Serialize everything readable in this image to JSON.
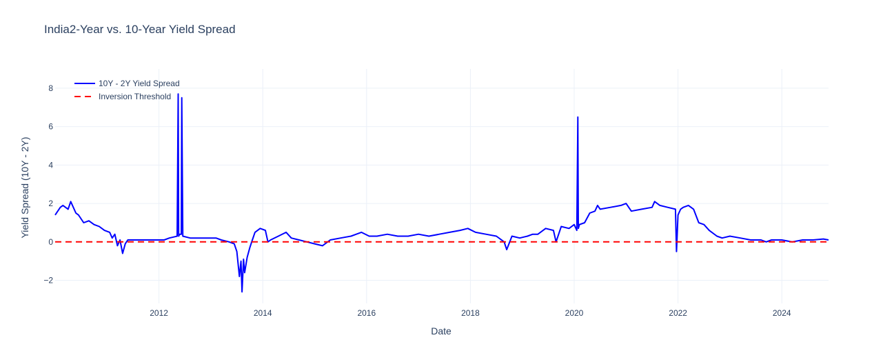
{
  "chart_data": {
    "type": "line",
    "title": "India2-Year vs. 10-Year Yield Spread",
    "xlabel": "Date",
    "ylabel": "Yield Spread (10Y - 2Y)",
    "xlim": [
      2010.0,
      2024.9
    ],
    "ylim": [
      -3.2,
      9.0
    ],
    "x_tick_labels": [
      "2012",
      "2014",
      "2016",
      "2018",
      "2020",
      "2022",
      "2024"
    ],
    "y_tick_labels": [
      "−2",
      "0",
      "2",
      "4",
      "6",
      "8"
    ],
    "grid": true,
    "legend_position": "top-left",
    "series": [
      {
        "name": "10Y - 2Y Yield Spread",
        "color": "#0000ff",
        "x": [
          2010.0,
          2010.1,
          2010.15,
          2010.25,
          2010.3,
          2010.4,
          2010.45,
          2010.55,
          2010.65,
          2010.75,
          2010.85,
          2010.95,
          2011.05,
          2011.1,
          2011.15,
          2011.2,
          2011.25,
          2011.3,
          2011.35,
          2011.4,
          2011.5,
          2011.7,
          2011.9,
          2012.1,
          2012.2,
          2012.35,
          2012.37,
          2012.38,
          2012.4,
          2012.43,
          2012.44,
          2012.46,
          2012.6,
          2012.8,
          2013.0,
          2013.1,
          2013.2,
          2013.35,
          2013.45,
          2013.5,
          2013.55,
          2013.58,
          2013.6,
          2013.63,
          2013.65,
          2013.7,
          2013.75,
          2013.8,
          2013.85,
          2013.95,
          2014.05,
          2014.1,
          2014.15,
          2014.3,
          2014.45,
          2014.55,
          2014.7,
          2014.85,
          2015.0,
          2015.15,
          2015.3,
          2015.5,
          2015.7,
          2015.8,
          2015.9,
          2016.05,
          2016.2,
          2016.4,
          2016.6,
          2016.8,
          2017.0,
          2017.2,
          2017.4,
          2017.6,
          2017.8,
          2017.95,
          2018.1,
          2018.3,
          2018.5,
          2018.65,
          2018.7,
          2018.8,
          2018.95,
          2019.1,
          2019.2,
          2019.3,
          2019.45,
          2019.6,
          2019.65,
          2019.75,
          2019.9,
          2020.0,
          2020.05,
          2020.07,
          2020.08,
          2020.1,
          2020.2,
          2020.3,
          2020.4,
          2020.45,
          2020.5,
          2020.7,
          2020.9,
          2021.0,
          2021.1,
          2021.3,
          2021.5,
          2021.55,
          2021.65,
          2021.8,
          2021.95,
          2021.97,
          2022.0,
          2022.05,
          2022.1,
          2022.2,
          2022.3,
          2022.4,
          2022.5,
          2022.6,
          2022.75,
          2022.85,
          2023.0,
          2023.2,
          2023.4,
          2023.6,
          2023.7,
          2023.8,
          2024.0,
          2024.2,
          2024.4,
          2024.6,
          2024.8,
          2024.9
        ],
        "y": [
          1.4,
          1.8,
          1.9,
          1.7,
          2.1,
          1.5,
          1.4,
          1.0,
          1.1,
          0.9,
          0.8,
          0.6,
          0.5,
          0.2,
          0.4,
          -0.2,
          0.1,
          -0.6,
          -0.1,
          0.1,
          0.1,
          0.1,
          0.1,
          0.1,
          0.2,
          0.3,
          7.7,
          0.3,
          0.4,
          0.4,
          7.5,
          0.3,
          0.2,
          0.2,
          0.2,
          0.2,
          0.1,
          0.0,
          -0.1,
          -0.5,
          -1.8,
          -1.0,
          -2.6,
          -0.9,
          -1.6,
          -0.8,
          -0.3,
          0.1,
          0.5,
          0.7,
          0.6,
          0.0,
          0.1,
          0.3,
          0.5,
          0.2,
          0.1,
          0.0,
          -0.1,
          -0.2,
          0.1,
          0.2,
          0.3,
          0.4,
          0.5,
          0.3,
          0.3,
          0.4,
          0.3,
          0.3,
          0.4,
          0.3,
          0.4,
          0.5,
          0.6,
          0.7,
          0.5,
          0.4,
          0.3,
          0.0,
          -0.4,
          0.3,
          0.2,
          0.3,
          0.4,
          0.4,
          0.7,
          0.6,
          0.0,
          0.8,
          0.7,
          0.9,
          0.6,
          6.5,
          0.7,
          0.9,
          1.0,
          1.5,
          1.6,
          1.9,
          1.7,
          1.8,
          1.9,
          2.0,
          1.6,
          1.7,
          1.8,
          2.1,
          1.9,
          1.8,
          1.7,
          -0.5,
          1.4,
          1.7,
          1.8,
          1.9,
          1.7,
          1.0,
          0.9,
          0.6,
          0.3,
          0.2,
          0.3,
          0.2,
          0.1,
          0.1,
          0.0,
          0.1,
          0.1,
          0.0,
          0.1,
          0.1,
          0.15,
          0.1
        ]
      },
      {
        "name": "Inversion Threshold",
        "color": "#ff0000",
        "dash": "dash",
        "x": [
          2010.0,
          2024.9
        ],
        "y": [
          0,
          0
        ]
      }
    ]
  }
}
